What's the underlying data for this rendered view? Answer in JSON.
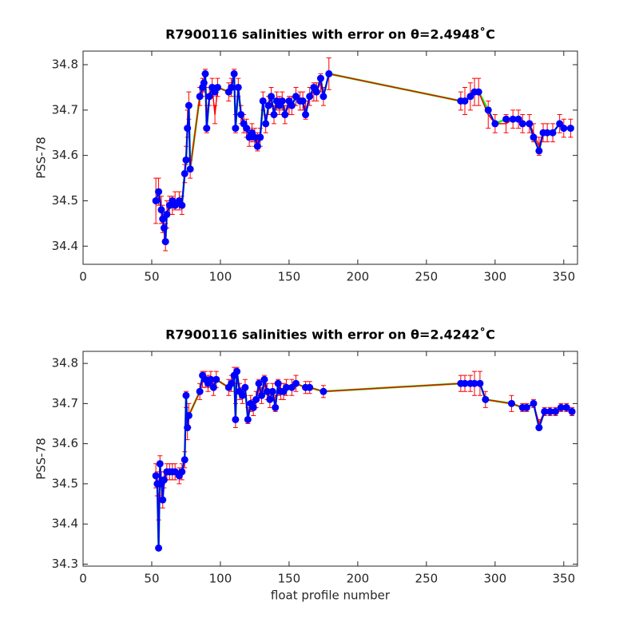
{
  "chart_data": [
    {
      "type": "line",
      "title": "R7900116 salinities with error on θ=2.4948˚C",
      "ylabel": "PSS-78",
      "x": [
        53,
        55,
        57,
        58,
        59,
        60,
        61,
        63,
        65,
        67,
        70,
        72,
        74,
        75,
        76,
        77,
        78,
        85,
        87,
        88,
        89,
        90,
        92,
        94,
        96,
        98,
        106,
        108,
        110,
        111,
        113,
        115,
        117,
        119,
        121,
        123,
        125,
        127,
        129,
        131,
        133,
        135,
        137,
        139,
        141,
        143,
        145,
        147,
        150,
        152,
        155,
        158,
        160,
        162,
        165,
        168,
        170,
        173,
        175,
        179,
        275,
        278,
        282,
        285,
        288,
        295,
        300,
        308,
        313,
        317,
        320,
        325,
        328,
        332,
        335,
        338,
        342,
        347,
        350,
        355
      ],
      "series": [
        {
          "color": "#ff0000",
          "values": [
            34.5,
            34.52,
            34.48,
            34.46,
            34.44,
            34.42,
            34.47,
            34.49,
            34.49,
            34.5,
            34.5,
            34.49,
            34.56,
            34.6,
            34.67,
            34.71,
            34.57,
            34.73,
            34.75,
            34.76,
            34.77,
            34.68,
            34.73,
            34.75,
            34.69,
            34.75,
            34.74,
            34.75,
            34.77,
            34.67,
            34.75,
            34.69,
            34.67,
            34.66,
            34.64,
            34.65,
            34.64,
            34.63,
            34.64,
            34.72,
            34.67,
            34.71,
            34.73,
            34.69,
            34.72,
            34.71,
            34.72,
            34.69,
            34.71,
            34.71,
            34.73,
            34.72,
            34.72,
            34.7,
            34.73,
            34.74,
            34.74,
            34.76,
            34.73,
            34.78,
            34.72,
            34.72,
            34.73,
            34.74,
            34.74,
            34.69,
            34.67,
            34.67,
            34.68,
            34.68,
            34.67,
            34.67,
            34.65,
            34.62,
            34.65,
            34.65,
            34.65,
            34.67,
            34.66,
            34.66
          ],
          "errors": [
            0.05,
            0.03,
            0.03,
            0.03,
            0.03,
            0.03,
            0.03,
            0.02,
            0.02,
            0.02,
            0.02,
            0.02,
            0.02,
            0.02,
            0.03,
            0.03,
            0.02,
            0.02,
            0.02,
            0.02,
            0.02,
            0.03,
            0.02,
            0.02,
            0.02,
            0.02,
            0.02,
            0.02,
            0.02,
            0.02,
            0.02,
            0.02,
            0.02,
            0.02,
            0.02,
            0.02,
            0.02,
            0.02,
            0.02,
            0.02,
            0.02,
            0.02,
            0.02,
            0.02,
            0.02,
            0.02,
            0.02,
            0.02,
            0.02,
            0.02,
            0.02,
            0.02,
            0.02,
            0.02,
            0.02,
            0.02,
            0.02,
            0.02,
            0.02,
            0.035,
            0.02,
            0.03,
            0.03,
            0.03,
            0.03,
            0.03,
            0.02,
            0.02,
            0.02,
            0.02,
            0.02,
            0.02,
            0.02,
            0.02,
            0.02,
            0.02,
            0.02,
            0.02,
            0.02,
            0.02
          ]
        },
        {
          "color": "#0000ff",
          "line_color": "#00ff00",
          "values": [
            34.5,
            34.52,
            34.48,
            34.46,
            34.44,
            34.41,
            34.47,
            34.49,
            34.5,
            34.49,
            34.5,
            34.49,
            34.56,
            34.59,
            34.66,
            34.71,
            34.57,
            34.73,
            34.75,
            34.76,
            34.78,
            34.66,
            34.73,
            34.75,
            34.74,
            34.75,
            34.74,
            34.75,
            34.78,
            34.66,
            34.75,
            34.69,
            34.67,
            34.66,
            34.64,
            34.65,
            34.64,
            34.62,
            34.64,
            34.72,
            34.67,
            34.71,
            34.73,
            34.69,
            34.72,
            34.71,
            34.72,
            34.69,
            34.72,
            34.71,
            34.73,
            34.72,
            34.72,
            34.69,
            34.73,
            34.75,
            34.74,
            34.77,
            34.73,
            34.78,
            34.72,
            34.72,
            34.73,
            34.74,
            34.74,
            34.7,
            34.67,
            34.68,
            34.68,
            34.68,
            34.67,
            34.67,
            34.64,
            34.61,
            34.65,
            34.65,
            34.65,
            34.67,
            34.66,
            34.66
          ]
        }
      ],
      "xlim": [
        0,
        360
      ],
      "xticks": [
        0,
        50,
        100,
        150,
        200,
        250,
        300,
        350
      ],
      "ylim": [
        34.36,
        34.83
      ],
      "yticks": [
        34.4,
        34.5,
        34.6,
        34.7,
        34.8
      ]
    },
    {
      "type": "line",
      "title": "R7900116 salinities with error on θ=2.4242˚C",
      "xlabel": "float profile number",
      "ylabel": "PSS-78",
      "x": [
        53,
        54,
        55,
        56,
        57,
        58,
        59,
        61,
        63,
        65,
        67,
        70,
        72,
        74,
        75,
        76,
        77,
        85,
        87,
        89,
        91,
        93,
        95,
        97,
        106,
        108,
        110,
        111,
        112,
        114,
        116,
        118,
        120,
        122,
        124,
        126,
        128,
        130,
        132,
        134,
        136,
        138,
        140,
        142,
        144,
        146,
        148,
        152,
        155,
        162,
        165,
        175,
        275,
        278,
        282,
        285,
        289,
        293,
        312,
        320,
        323,
        328,
        332,
        336,
        340,
        344,
        348,
        352,
        356
      ],
      "series": [
        {
          "color": "#ff0000",
          "values": [
            34.52,
            34.5,
            34.44,
            34.54,
            34.5,
            34.47,
            34.51,
            34.53,
            34.53,
            34.53,
            34.53,
            34.52,
            34.53,
            34.56,
            34.71,
            34.64,
            34.67,
            34.73,
            34.76,
            34.76,
            34.75,
            34.76,
            34.74,
            34.76,
            34.74,
            34.75,
            34.77,
            34.67,
            34.77,
            34.73,
            34.72,
            34.74,
            34.67,
            34.7,
            34.69,
            34.71,
            34.74,
            34.72,
            34.75,
            34.73,
            34.71,
            34.73,
            34.7,
            34.74,
            34.73,
            34.73,
            34.74,
            34.74,
            34.75,
            34.74,
            34.74,
            34.73,
            34.75,
            34.75,
            34.75,
            34.75,
            34.75,
            34.71,
            34.7,
            34.69,
            34.69,
            34.7,
            34.65,
            34.68,
            34.68,
            34.68,
            34.69,
            34.69,
            34.68
          ],
          "errors": [
            0.03,
            0.03,
            0.03,
            0.03,
            0.03,
            0.03,
            0.02,
            0.02,
            0.02,
            0.02,
            0.02,
            0.02,
            0.02,
            0.02,
            0.02,
            0.03,
            0.03,
            0.02,
            0.02,
            0.02,
            0.02,
            0.02,
            0.02,
            0.02,
            0.02,
            0.02,
            0.02,
            0.03,
            0.02,
            0.02,
            0.02,
            0.02,
            0.02,
            0.02,
            0.02,
            0.02,
            0.02,
            0.02,
            0.02,
            0.02,
            0.02,
            0.02,
            0.02,
            0.02,
            0.02,
            0.02,
            0.02,
            0.02,
            0.02,
            0.015,
            0.015,
            0.015,
            0.02,
            0.02,
            0.02,
            0.03,
            0.03,
            0.02,
            0.02,
            0.01,
            0.01,
            0.01,
            0.01,
            0.01,
            0.01,
            0.01,
            0.01,
            0.01,
            0.01
          ]
        },
        {
          "color": "#0000ff",
          "line_color": "#00ff00",
          "values": [
            34.52,
            34.5,
            34.34,
            34.55,
            34.5,
            34.46,
            34.51,
            34.53,
            34.53,
            34.53,
            34.53,
            34.52,
            34.53,
            34.56,
            34.72,
            34.64,
            34.67,
            34.73,
            34.77,
            34.76,
            34.75,
            34.76,
            34.74,
            34.76,
            34.74,
            34.75,
            34.77,
            34.66,
            34.78,
            34.73,
            34.72,
            34.74,
            34.66,
            34.7,
            34.69,
            34.71,
            34.75,
            34.72,
            34.76,
            34.73,
            34.71,
            34.73,
            34.69,
            34.75,
            34.73,
            34.73,
            34.74,
            34.74,
            34.75,
            34.74,
            34.74,
            34.73,
            34.75,
            34.75,
            34.75,
            34.75,
            34.75,
            34.71,
            34.7,
            34.69,
            34.69,
            34.7,
            34.64,
            34.68,
            34.68,
            34.68,
            34.69,
            34.69,
            34.68
          ]
        }
      ],
      "xlim": [
        0,
        360
      ],
      "xticks": [
        0,
        50,
        100,
        150,
        200,
        250,
        300,
        350
      ],
      "ylim": [
        34.295,
        34.83
      ],
      "yticks": [
        34.3,
        34.4,
        34.5,
        34.6,
        34.7,
        34.8
      ]
    }
  ]
}
